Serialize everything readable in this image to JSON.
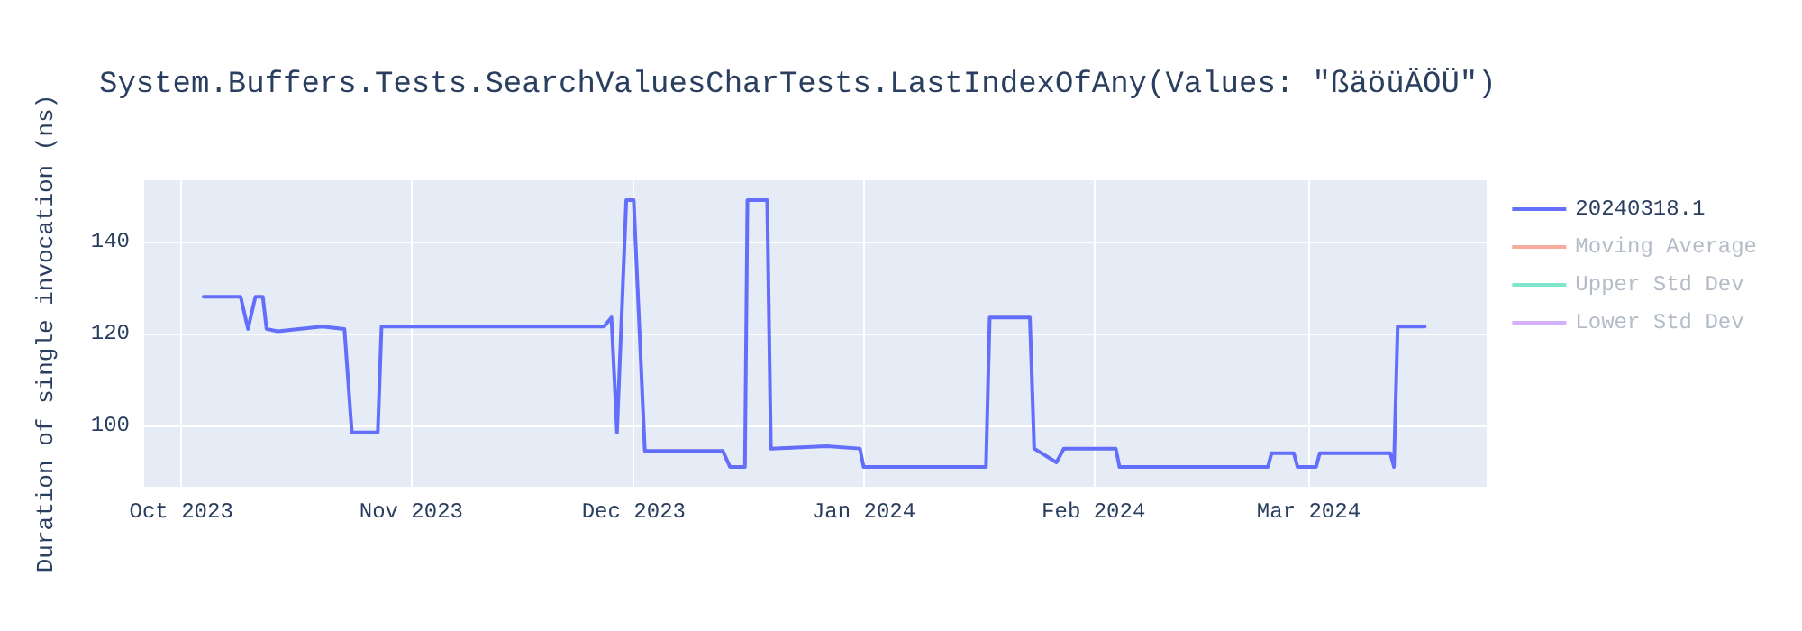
{
  "chart_data": {
    "type": "line",
    "title": "System.Buffers.Tests.SearchValuesCharTests.LastIndexOfAny(Values: \"ßäöüÄÖÜ\")",
    "ylabel": "Duration of single invocation (ns)",
    "x": [
      "2023-10-04",
      "2023-10-09",
      "2023-10-10",
      "2023-10-11",
      "2023-10-12",
      "2023-10-12T12:00",
      "2023-10-14",
      "2023-10-20",
      "2023-10-23",
      "2023-10-24",
      "2023-10-27T12:00",
      "2023-10-28",
      "2023-11-10",
      "2023-11-27",
      "2023-11-28",
      "2023-11-28T18:00",
      "2023-11-30",
      "2023-12-01",
      "2023-12-02T12:00",
      "2023-12-13",
      "2023-12-14",
      "2023-12-16",
      "2023-12-16T08:00",
      "2023-12-19",
      "2023-12-19T12:00",
      "2023-12-27",
      "2023-12-31T12:00",
      "2024-01-01",
      "2024-01-17T12:00",
      "2024-01-18",
      "2024-01-23T10:00",
      "2024-01-24",
      "2024-01-27",
      "2024-01-28",
      "2024-02-04",
      "2024-02-04T12:00",
      "2024-02-24T12:00",
      "2024-02-25",
      "2024-02-28",
      "2024-02-28T12:00",
      "2024-03-02",
      "2024-03-02T12:00",
      "2024-03-12",
      "2024-03-12T12:00",
      "2024-03-13",
      "2024-03-16T16:00"
    ],
    "series": [
      {
        "name": "20240318.1",
        "color": "#636efa",
        "values": [
          128,
          128,
          121,
          128,
          128,
          121,
          120.5,
          121.5,
          121,
          98.5,
          98.5,
          121.5,
          121.5,
          121.5,
          123.5,
          98.5,
          149,
          149,
          94.5,
          94.5,
          91,
          91,
          149,
          149,
          95,
          95.5,
          95,
          91,
          91,
          123.5,
          123.5,
          95,
          92,
          95,
          95,
          91,
          91,
          94,
          94,
          91,
          91,
          94,
          94,
          91,
          121.5,
          121.5
        ]
      },
      {
        "name": "Moving Average",
        "color": "#f7aa9e",
        "values": [
          null,
          null,
          null,
          null,
          null,
          null,
          null,
          null,
          null,
          null,
          null,
          null,
          null,
          null,
          null,
          null,
          null,
          null,
          null,
          null,
          null,
          null,
          null,
          null,
          null,
          null,
          null,
          null,
          null,
          null,
          null,
          null,
          null,
          null,
          null,
          null,
          null,
          null,
          null,
          null,
          null,
          null,
          null,
          null,
          null,
          null
        ]
      },
      {
        "name": "Upper Std Dev",
        "color": "#80e5cb",
        "values": [
          null,
          null,
          null,
          null,
          null,
          null,
          null,
          null,
          null,
          null,
          null,
          null,
          null,
          null,
          null,
          null,
          null,
          null,
          null,
          null,
          null,
          null,
          null,
          null,
          null,
          null,
          null,
          null,
          null,
          null,
          null,
          null,
          null,
          null,
          null,
          null,
          null,
          null,
          null,
          null,
          null,
          null,
          null,
          null,
          null,
          null
        ]
      },
      {
        "name": "Lower Std Dev",
        "color": "#d4b0fc",
        "values": [
          null,
          null,
          null,
          null,
          null,
          null,
          null,
          null,
          null,
          null,
          null,
          null,
          null,
          null,
          null,
          null,
          null,
          null,
          null,
          null,
          null,
          null,
          null,
          null,
          null,
          null,
          null,
          null,
          null,
          null,
          null,
          null,
          null,
          null,
          null,
          null,
          null,
          null,
          null,
          null,
          null,
          null,
          null,
          null,
          null,
          null
        ]
      }
    ],
    "xlim": [
      "2023-09-26",
      "2024-03-25"
    ],
    "xticks": [
      {
        "value": "2023-10-01",
        "label": "Oct 2023"
      },
      {
        "value": "2023-11-01",
        "label": "Nov 2023"
      },
      {
        "value": "2023-12-01",
        "label": "Dec 2023"
      },
      {
        "value": "2024-01-01",
        "label": "Jan 2024"
      },
      {
        "value": "2024-02-01",
        "label": "Feb 2024"
      },
      {
        "value": "2024-03-01",
        "label": "Mar 2024"
      }
    ],
    "ylim": [
      86.7,
      153.3
    ],
    "yticks": [
      100,
      120,
      140
    ],
    "grid": true,
    "legend": "top right",
    "marker": "none",
    "line_style": "solid"
  }
}
